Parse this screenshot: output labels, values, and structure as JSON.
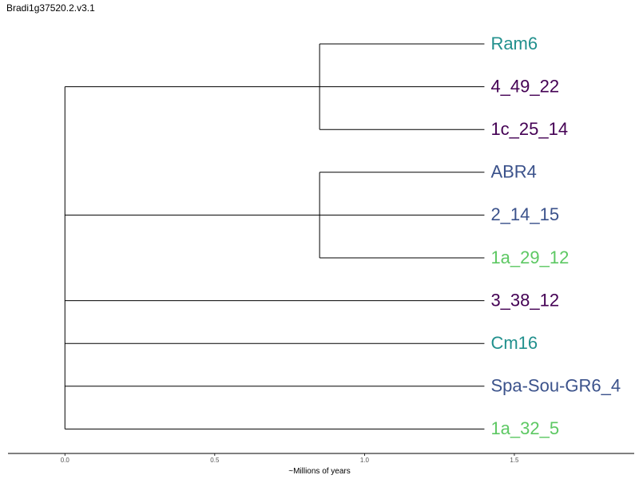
{
  "title": "Bradi1g37520.2.v3.1",
  "x_axis": {
    "label": "~Millions of years",
    "ticks": [
      {
        "value": 0.0,
        "label": "0.0"
      },
      {
        "value": 0.5,
        "label": "0.5"
      },
      {
        "value": 1.0,
        "label": "1.0"
      },
      {
        "value": 1.5,
        "label": "1.5"
      }
    ],
    "range": [
      -0.19,
      1.9
    ]
  },
  "leaves": [
    {
      "id": "Ram6",
      "label": "Ram6",
      "color": "#21908d",
      "depth": 1.4
    },
    {
      "id": "4_49_22",
      "label": "4_49_22",
      "color": "#440154",
      "depth": 1.4
    },
    {
      "id": "1c_25_14",
      "label": "1c_25_14",
      "color": "#440154",
      "depth": 1.4
    },
    {
      "id": "ABR4",
      "label": "ABR4",
      "color": "#3b528b",
      "depth": 1.4
    },
    {
      "id": "2_14_15",
      "label": "2_14_15",
      "color": "#3b528b",
      "depth": 1.4
    },
    {
      "id": "1a_29_12",
      "label": "1a_29_12",
      "color": "#5dc863",
      "depth": 1.4
    },
    {
      "id": "3_38_12",
      "label": "3_38_12",
      "color": "#440154",
      "depth": 1.4
    },
    {
      "id": "Cm16",
      "label": "Cm16",
      "color": "#21908d",
      "depth": 1.4
    },
    {
      "id": "Spa-Sou-GR6_4",
      "label": "Spa-Sou-GR6_4",
      "color": "#3b528b",
      "depth": 1.4
    },
    {
      "id": "1a_32_5",
      "label": "1a_32_5",
      "color": "#5dc863",
      "depth": 1.4
    }
  ],
  "tree": {
    "depth": 0.0,
    "children": [
      {
        "depth": 0.85,
        "children": [
          {
            "leaf": "Ram6"
          },
          {
            "leaf": "4_49_22"
          },
          {
            "leaf": "1c_25_14"
          }
        ]
      },
      {
        "depth": 0.85,
        "children": [
          {
            "leaf": "ABR4"
          },
          {
            "leaf": "2_14_15"
          },
          {
            "leaf": "1a_29_12"
          }
        ]
      },
      {
        "leaf": "3_38_12"
      },
      {
        "leaf": "Cm16"
      },
      {
        "leaf": "Spa-Sou-GR6_4"
      },
      {
        "leaf": "1a_32_5"
      }
    ]
  }
}
